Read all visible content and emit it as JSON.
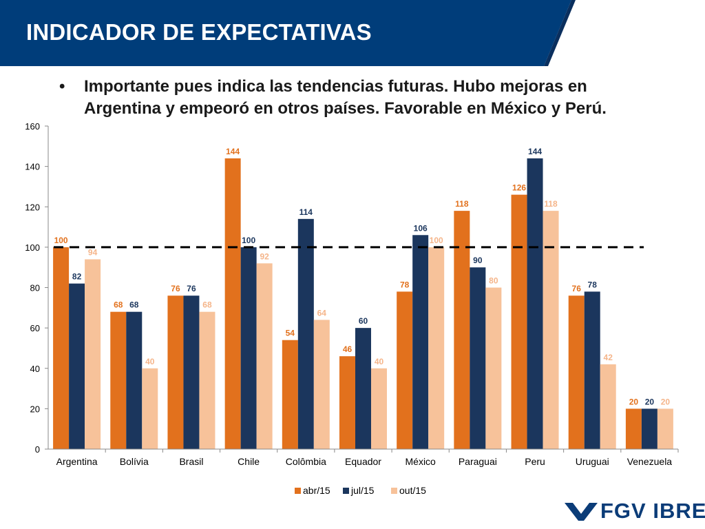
{
  "slide": {
    "title": "INDICADOR DE EXPECTATIVAS",
    "bullet_icon": "bullet-dot",
    "bullet": "Importante pues indica las tendencias futuras. Hubo mejoras en Argentina y empeoró en otros países. Favorable en México y Perú.",
    "logo_text": "FGV IBRE",
    "colors": {
      "header": "#003d7a",
      "header_accent": "#0a2f5e"
    }
  },
  "chart_data": {
    "type": "bar",
    "categories": [
      "Argentina",
      "Bolívia",
      "Brasil",
      "Chile",
      "Colômbia",
      "Equador",
      "México",
      "Paraguai",
      "Peru",
      "Uruguai",
      "Venezuela"
    ],
    "series": [
      {
        "name": "abr/15",
        "color": "#e2711d",
        "label_color": "#e2711d",
        "values": [
          100,
          68,
          76,
          144,
          54,
          46,
          78,
          118,
          126,
          76,
          20
        ]
      },
      {
        "name": "jul/15",
        "color": "#1b365d",
        "label_color": "#1b365d",
        "values": [
          82,
          68,
          76,
          100,
          114,
          60,
          106,
          90,
          144,
          78,
          20
        ]
      },
      {
        "name": "out/15",
        "color": "#f7c29a",
        "label_color": "#f5b58a",
        "values": [
          94,
          40,
          68,
          92,
          64,
          40,
          100,
          80,
          118,
          42,
          20
        ]
      }
    ],
    "ylim": [
      0,
      160
    ],
    "yticks": [
      "0",
      "20",
      "40",
      "60",
      "80",
      "100",
      "120",
      "140",
      "160"
    ],
    "reference_line": {
      "value": 100,
      "style": "dashed",
      "color": "#000000"
    },
    "grid": false,
    "legend": "bottom",
    "title": "",
    "xlabel": "",
    "ylabel": ""
  }
}
